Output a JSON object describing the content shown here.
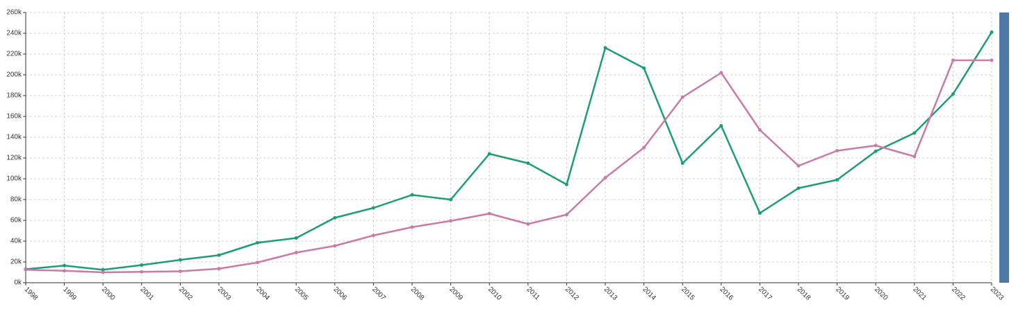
{
  "chart_data": {
    "type": "line",
    "x": [
      "1998",
      "1999",
      "2000",
      "2001",
      "2002",
      "2003",
      "2004",
      "2005",
      "2006",
      "2007",
      "2008",
      "2009",
      "2010",
      "2011",
      "2012",
      "2013",
      "2014",
      "2015",
      "2016",
      "2017",
      "2018",
      "2019",
      "2020",
      "2021",
      "2022",
      "2023"
    ],
    "series": [
      {
        "color": "#1b9e77",
        "values": [
          13000,
          16500,
          12500,
          17000,
          22000,
          26500,
          38500,
          43000,
          62500,
          72000,
          84500,
          80000,
          124000,
          115000,
          94500,
          226000,
          206500,
          115000,
          151000,
          67000,
          91000,
          99000,
          126500,
          144000,
          181500,
          241000
        ]
      },
      {
        "color": "#c97aa7",
        "values": [
          12500,
          11500,
          10000,
          10500,
          11000,
          13500,
          19500,
          29000,
          35500,
          45500,
          53500,
          59500,
          66500,
          56500,
          65500,
          101000,
          130000,
          178500,
          202000,
          147000,
          112500,
          127000,
          132000,
          121500,
          214000,
          214000
        ]
      }
    ],
    "y_ticks": [
      "0k",
      "20k",
      "40k",
      "60k",
      "80k",
      "100k",
      "120k",
      "140k",
      "160k",
      "180k",
      "200k",
      "220k",
      "240k",
      "260k"
    ],
    "ylim": [
      0,
      260000
    ],
    "grid": true,
    "scrollbar_color": "#4e79a7"
  }
}
